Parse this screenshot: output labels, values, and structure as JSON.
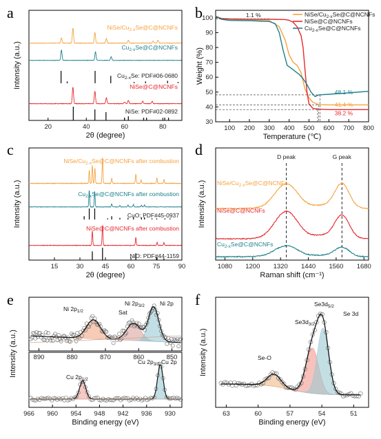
{
  "colors": {
    "orange": "#f5a23c",
    "teal": "#1b7f8c",
    "red": "#e8262b",
    "black": "#111111",
    "grey": "#777777"
  },
  "chart_data": [
    {
      "panel": "a",
      "type": "line",
      "xlabel": "2θ (degree)",
      "ylabel": "Intensity (a.u.)",
      "xlim": [
        10,
        90
      ],
      "xticks": [
        20,
        40,
        60,
        80
      ],
      "series": [
        {
          "name": "NiSe/Cu2-xSe@C@NCNFs",
          "color": "orange",
          "peaks": [
            [
              27,
              0.35
            ],
            [
              33,
              1.0
            ],
            [
              44.5,
              0.7
            ],
            [
              50.5,
              0.3
            ],
            [
              62,
              0.2
            ],
            [
              75,
              0.15
            ],
            [
              77.5,
              0.2
            ]
          ]
        },
        {
          "name": "Cu2-xSe@C@NCNFs",
          "color": "teal",
          "peaks": [
            [
              27,
              0.85
            ],
            [
              44.8,
              0.7
            ],
            [
              53,
              0.3
            ]
          ]
        },
        {
          "name": "Cu2-xSe: PDF#06-0680",
          "color": "black",
          "sticks": [
            [
              26.8,
              1.0
            ],
            [
              30,
              0.15
            ],
            [
              44.6,
              1.0
            ],
            [
              52.8,
              0.6
            ],
            [
              65,
              0.1
            ],
            [
              71,
              0.15
            ],
            [
              82.5,
              0.2
            ],
            [
              88,
              0.1
            ]
          ]
        },
        {
          "name": "NiSe@C@NCNFs",
          "color": "red",
          "peaks": [
            [
              33,
              1.0
            ],
            [
              44.5,
              0.75
            ],
            [
              50.5,
              0.35
            ],
            [
              60,
              0.1
            ],
            [
              62,
              0.2
            ],
            [
              69.5,
              0.15
            ],
            [
              74.5,
              0.15
            ]
          ]
        },
        {
          "name": "NiSe: PDF#02-0892",
          "color": "black",
          "sticks": [
            [
              33.2,
              1.0
            ],
            [
              44.5,
              0.8
            ],
            [
              50.3,
              0.6
            ],
            [
              60,
              0.2
            ],
            [
              62,
              0.3
            ],
            [
              70,
              0.2
            ],
            [
              71.5,
              0.2
            ],
            [
              81,
              0.2
            ],
            [
              83,
              0.2
            ]
          ]
        }
      ]
    },
    {
      "panel": "b",
      "type": "line",
      "xlabel": "Temperature (℃)",
      "ylabel": "Weight (%)",
      "xlim": [
        30,
        800
      ],
      "ylim": [
        30,
        105
      ],
      "xticks": [
        100,
        200,
        300,
        400,
        500,
        600,
        700,
        800
      ],
      "yticks": [
        30,
        40,
        50,
        60,
        70,
        80,
        90,
        100
      ],
      "annotations": [
        "1.1 %",
        "48.1 %",
        "41.4 %",
        "38.2 %"
      ],
      "series": [
        {
          "name": "NiSe/Cu2-xSe@C@NCNFs",
          "color": "orange",
          "x": [
            30,
            60,
            100,
            200,
            300,
            350,
            380,
            400,
            420,
            440,
            460,
            480,
            500,
            520,
            540,
            560,
            600,
            700,
            800
          ],
          "y": [
            101,
            99,
            98.5,
            98.2,
            98,
            94,
            85,
            75,
            70,
            68,
            63,
            52,
            46,
            43,
            42,
            41.5,
            41.4,
            41.4,
            41.4
          ]
        },
        {
          "name": "NiSe@C@NCNFs",
          "color": "red",
          "x": [
            30,
            60,
            100,
            200,
            300,
            380,
            400,
            420,
            440,
            460,
            470,
            480,
            490,
            500,
            520,
            550,
            600,
            700,
            800
          ],
          "y": [
            101,
            99.5,
            99.2,
            99,
            99,
            98.8,
            98.3,
            97,
            94,
            88,
            80,
            65,
            50,
            42,
            39,
            38.5,
            38.2,
            38.2,
            38.2
          ]
        },
        {
          "name": "Cu2-xSe@C@NCNFs",
          "color": "teal",
          "x": [
            30,
            60,
            100,
            200,
            300,
            330,
            350,
            370,
            390,
            410,
            430,
            450,
            470,
            490,
            510,
            530,
            550,
            600,
            700,
            800
          ],
          "y": [
            101,
            99,
            98.2,
            98,
            97.5,
            96,
            90,
            78,
            68,
            66,
            64,
            62,
            59,
            55,
            50,
            47,
            48.1,
            48.5,
            49.5,
            50.5
          ]
        }
      ]
    },
    {
      "panel": "c",
      "type": "line",
      "xlabel": "2θ (degree)",
      "ylabel": "Intensity (a.u.)",
      "xlim": [
        0,
        90
      ],
      "xticks": [
        15,
        30,
        45,
        60,
        75,
        90
      ],
      "series": [
        {
          "name": "NiSe/Cu2-xSe@C@NCNFs after combustion",
          "color": "orange",
          "peaks": [
            [
              35.5,
              0.5
            ],
            [
              37.3,
              0.7
            ],
            [
              38.8,
              0.6
            ],
            [
              43.3,
              1.0
            ],
            [
              48.7,
              0.2
            ],
            [
              62.9,
              0.35
            ],
            [
              66,
              0.15
            ],
            [
              75.3,
              0.2
            ],
            [
              79.5,
              0.15
            ]
          ]
        },
        {
          "name": "Cu2-xSe@C@NCNFs after combustion",
          "color": "teal",
          "peaks": [
            [
              35.5,
              1.0
            ],
            [
              38.7,
              0.95
            ],
            [
              48.7,
              0.2
            ],
            [
              53.5,
              0.1
            ],
            [
              58.3,
              0.12
            ],
            [
              61.5,
              0.15
            ],
            [
              66.2,
              0.12
            ],
            [
              68,
              0.12
            ]
          ]
        },
        {
          "name": "CuO: PDF#45-0937",
          "color": "black",
          "sticks": [
            [
              32.5,
              0.3
            ],
            [
              35.5,
              1.0
            ],
            [
              38.7,
              1.0
            ],
            [
              46.3,
              0.1
            ],
            [
              48.7,
              0.3
            ],
            [
              53.5,
              0.15
            ],
            [
              58.3,
              0.15
            ],
            [
              61.5,
              0.2
            ],
            [
              66.2,
              0.2
            ],
            [
              68,
              0.2
            ],
            [
              72.4,
              0.1
            ],
            [
              75.2,
              0.1
            ],
            [
              80,
              0.1
            ],
            [
              83,
              0.1
            ]
          ]
        },
        {
          "name": "NiSe@C@NCNFs after combustion",
          "color": "red",
          "peaks": [
            [
              37.3,
              0.7
            ],
            [
              43.3,
              1.0
            ],
            [
              62.9,
              0.4
            ],
            [
              75.4,
              0.15
            ],
            [
              79.4,
              0.15
            ]
          ]
        },
        {
          "name": "NiO: PDF#44-1159",
          "color": "black",
          "sticks": [
            [
              37.3,
              0.7
            ],
            [
              43.3,
              1.0
            ],
            [
              62.9,
              0.55
            ],
            [
              75.4,
              0.2
            ],
            [
              79.4,
              0.15
            ]
          ]
        }
      ]
    },
    {
      "panel": "d",
      "type": "line",
      "xlabel": "Raman shift (cm⁻¹)",
      "ylabel": "Intensity (a.u.)",
      "xlim": [
        1040,
        1700
      ],
      "xticks": [
        1080,
        1200,
        1320,
        1440,
        1560,
        1680
      ],
      "reference_lines": [
        {
          "x": 1345,
          "label": "D peak"
        },
        {
          "x": 1585,
          "label": "G peak"
        }
      ],
      "series": [
        {
          "name": "NiSe/Cu2-xSe@C@NCNFs",
          "color": "orange",
          "x": [
            1345,
            1585
          ],
          "y": [
            1.0,
            1.0
          ]
        },
        {
          "name": "NiSe@C@NCNFs",
          "color": "red",
          "x": [
            1345,
            1585
          ],
          "y": [
            1.0,
            0.85
          ]
        },
        {
          "name": "Cu2-xSe@C@NCNFs",
          "color": "teal",
          "x": [
            1345,
            1585
          ],
          "y": [
            1.0,
            0.85
          ]
        }
      ]
    },
    {
      "panel": "e",
      "type": "line",
      "xlabel": "Binding energy (eV)",
      "ylabel": "Intensity (a.u.)",
      "subplots": [
        {
          "region": "Ni 2p",
          "xlim": [
            893,
            847
          ],
          "xticks": [
            890,
            880,
            870,
            860,
            850
          ],
          "peak_labels": [
            "Ni 2p1/2",
            "Sat",
            "Ni 2p3/2",
            "Ni 2p"
          ],
          "peaks": [
            [
              873.6,
              0.55,
              3.0
            ],
            [
              861.5,
              0.5,
              3.0
            ],
            [
              855.5,
              1.0,
              2.2
            ]
          ]
        },
        {
          "region": "Cu 2p",
          "xlim": [
            966,
            927
          ],
          "xticks": [
            966,
            960,
            954,
            948,
            942,
            936,
            930
          ],
          "peak_labels": [
            "Cu 2p1/2",
            "Cu 2p3/2",
            "Cu 2p"
          ],
          "peaks": [
            [
              952.3,
              0.52,
              1.1
            ],
            [
              932.5,
              1.0,
              0.95
            ]
          ]
        }
      ]
    },
    {
      "panel": "f",
      "type": "line",
      "xlabel": "Binding energy (eV)",
      "ylabel": "Intensity (a.u.)",
      "xlim": [
        64,
        49.6
      ],
      "xticks": [
        63,
        60,
        57,
        54,
        51
      ],
      "peak_labels": [
        "Se 3d5/2",
        "Se 3d3/2",
        "Se 3d",
        "Se-O"
      ],
      "peaks": [
        [
          58.5,
          0.15,
          0.9
        ],
        [
          54.9,
          0.55,
          0.85
        ],
        [
          53.9,
          0.8,
          0.75
        ]
      ]
    }
  ]
}
